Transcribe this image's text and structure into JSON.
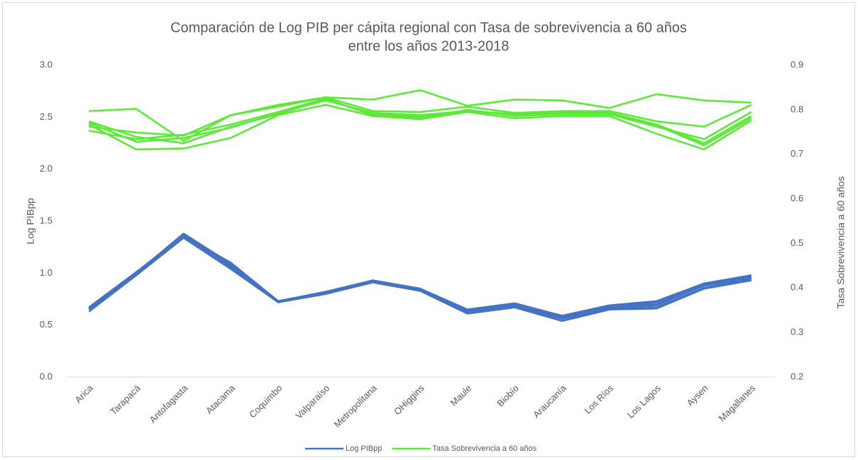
{
  "chart_data": {
    "type": "line",
    "title": [
      "Comparación de Log PIB per cápita regional con Tasa de sobrevivencia a 60 años",
      "entre los años 2013-2018"
    ],
    "y_label": "Log PIBpp",
    "y2_label": "Tasa Sobrevivencia a 60 años",
    "categories": [
      "Arica",
      "Tarapacá",
      "Antofagasta",
      "Atacama",
      "Coquimbo",
      "Valparaíso",
      "Metropolitana",
      "OHiggins",
      "Maule",
      "Biobío",
      "Araucanía",
      "Los Ríos",
      "Los Lagos",
      "Aysen",
      "Magallanes"
    ],
    "ylim": [
      0,
      3
    ],
    "yticks": [
      {
        "value": 0,
        "label": "0.0"
      },
      0.5,
      {
        "value": 1,
        "label": "1.0"
      },
      1.5,
      {
        "value": 2,
        "label": "2.0"
      },
      2.5,
      {
        "value": 3,
        "label": "3.0"
      }
    ],
    "y2lim": [
      0.2,
      0.9
    ],
    "y2ticks": [
      0.2,
      0.3,
      0.4,
      0.5,
      0.6,
      0.7,
      0.8,
      0.9
    ],
    "grid": false,
    "legend": "bottom",
    "series": [
      {
        "name": "Log PIBpp",
        "color": "#4472c4",
        "axis": "y",
        "values": [
          [
            0.63,
            0.98,
            1.34,
            1.04,
            0.72,
            0.8,
            0.91,
            0.83,
            0.61,
            0.67,
            0.54,
            0.65,
            0.66,
            0.85,
            0.93
          ],
          [
            0.65,
            0.99,
            1.35,
            1.06,
            0.72,
            0.8,
            0.92,
            0.84,
            0.62,
            0.68,
            0.56,
            0.66,
            0.67,
            0.86,
            0.94
          ],
          [
            0.66,
            0.99,
            1.36,
            1.07,
            0.73,
            0.81,
            0.92,
            0.84,
            0.63,
            0.69,
            0.57,
            0.67,
            0.69,
            0.88,
            0.95
          ],
          [
            0.67,
            1.0,
            1.37,
            1.08,
            0.73,
            0.81,
            0.92,
            0.84,
            0.64,
            0.7,
            0.58,
            0.68,
            0.7,
            0.89,
            0.96
          ],
          [
            0.66,
            1.0,
            1.38,
            1.09,
            0.72,
            0.81,
            0.93,
            0.85,
            0.64,
            0.7,
            0.59,
            0.68,
            0.72,
            0.9,
            0.97
          ],
          [
            0.67,
            1.01,
            1.36,
            1.1,
            0.73,
            0.82,
            0.93,
            0.85,
            0.65,
            0.71,
            0.59,
            0.69,
            0.73,
            0.9,
            0.98
          ]
        ]
      },
      {
        "name": "Tasa Sobrevivencia a 60 años",
        "color": "#5ee83a",
        "axis": "y2",
        "values": [
          [
            0.797,
            0.802,
            0.73,
            0.788,
            0.811,
            0.828,
            0.823,
            0.844,
            0.809,
            0.823,
            0.821,
            0.804,
            0.835,
            0.821,
            0.816
          ],
          [
            0.767,
            0.711,
            0.713,
            0.737,
            0.788,
            0.811,
            0.786,
            0.779,
            0.795,
            0.781,
            0.786,
            0.786,
            0.746,
            0.711,
            0.776
          ],
          [
            0.762,
            0.749,
            0.742,
            0.788,
            0.807,
            0.828,
            0.797,
            0.795,
            0.807,
            0.793,
            0.797,
            0.797,
            0.774,
            0.762,
            0.811
          ],
          [
            0.753,
            0.734,
            0.744,
            0.767,
            0.795,
            0.825,
            0.788,
            0.781,
            0.8,
            0.786,
            0.79,
            0.79,
            0.762,
            0.734,
            0.795
          ],
          [
            0.774,
            0.739,
            0.725,
            0.762,
            0.79,
            0.823,
            0.79,
            0.784,
            0.797,
            0.788,
            0.793,
            0.793,
            0.767,
            0.725,
            0.786
          ],
          [
            0.771,
            0.728,
            0.737,
            0.76,
            0.793,
            0.821,
            0.793,
            0.788,
            0.797,
            0.79,
            0.793,
            0.79,
            0.765,
            0.72,
            0.781
          ]
        ]
      }
    ]
  }
}
